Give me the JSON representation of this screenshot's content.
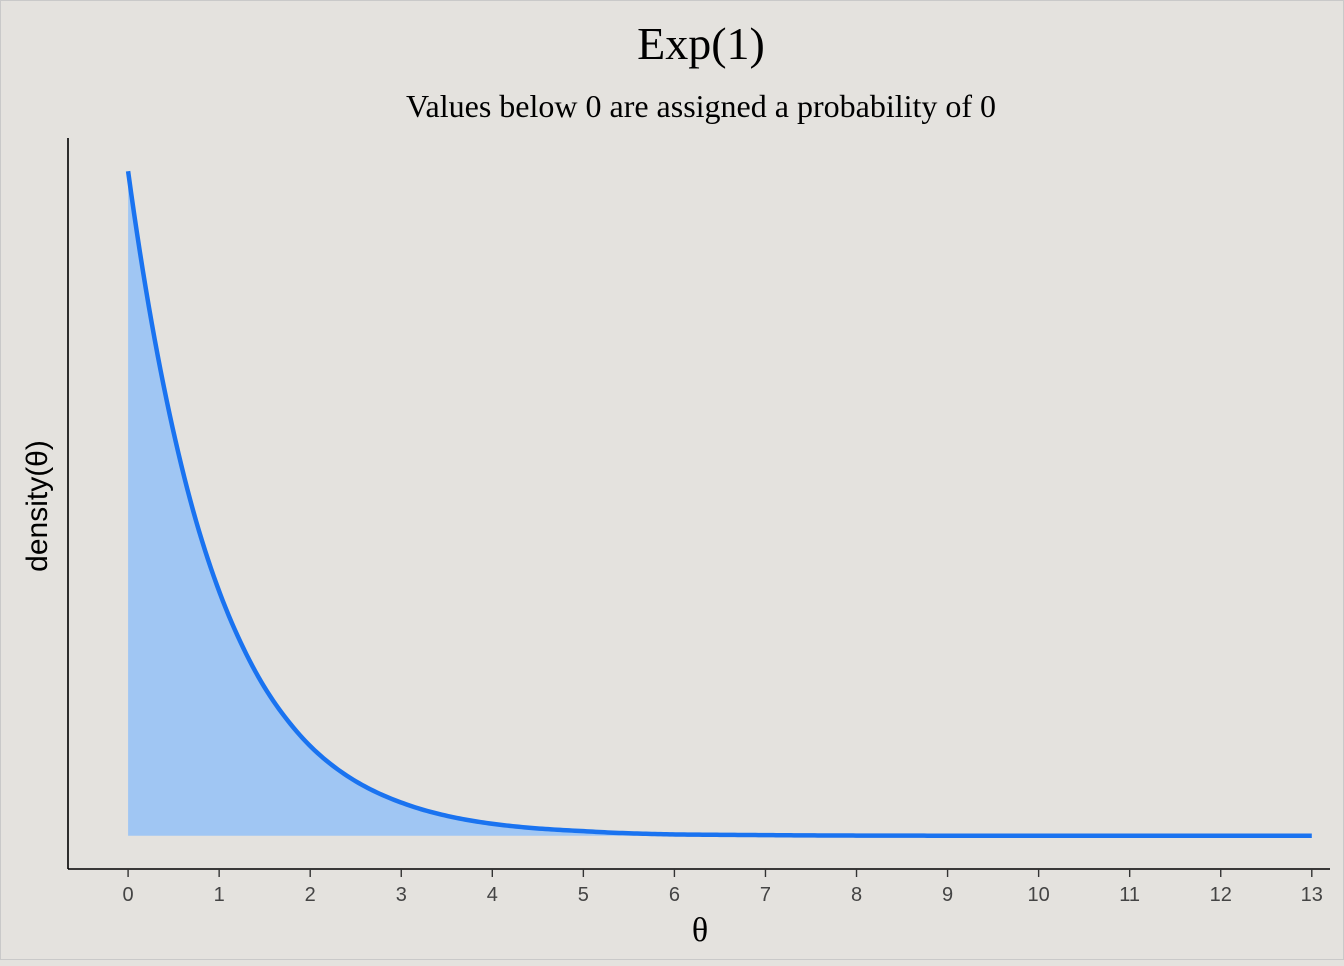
{
  "chart_data": {
    "type": "area",
    "title": "Exp(1)",
    "subtitle": "Values below 0 are assigned a probability of 0",
    "xlabel": "θ",
    "ylabel": "density(θ)",
    "xlim": [
      -0.66,
      13.2
    ],
    "ylim": [
      -0.05,
      1.05
    ],
    "x_ticks": [
      0,
      1,
      2,
      3,
      4,
      5,
      6,
      7,
      8,
      9,
      10,
      11,
      12,
      13
    ],
    "x_tick_labels": [
      "0",
      "1",
      "2",
      "3",
      "4",
      "5",
      "6",
      "7",
      "8",
      "9",
      "10",
      "11",
      "12",
      "13"
    ],
    "y_ticks_shown": false,
    "grid": false,
    "legend": "none",
    "series": [
      {
        "x": [
          0,
          0.25,
          0.5,
          0.75,
          1,
          1.25,
          1.5,
          1.75,
          2,
          2.5,
          3,
          3.5,
          4,
          4.5,
          5,
          6,
          7,
          8,
          9,
          10,
          11,
          12,
          13
        ],
        "y": [
          1.0,
          0.779,
          0.607,
          0.472,
          0.368,
          0.287,
          0.223,
          0.174,
          0.135,
          0.082,
          0.05,
          0.03,
          0.018,
          0.011,
          0.007,
          0.002,
          0.001,
          0.0003,
          0.0001,
          5e-05,
          2e-05,
          1e-05,
          0.0
        ]
      }
    ],
    "colors": {
      "line": "#1a73f0",
      "fill": "#a0c6f3",
      "background": "#e4e2de",
      "axis": "#000000"
    }
  }
}
